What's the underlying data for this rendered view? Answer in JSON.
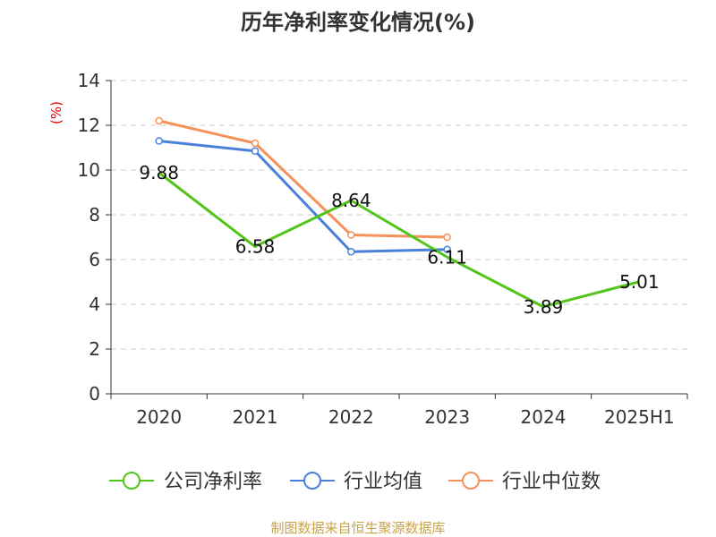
{
  "chart_data": {
    "type": "line",
    "title": "历年净利率变化情况(%)",
    "ylabel": "(%)",
    "xlabel": "",
    "categories": [
      "2020",
      "2021",
      "2022",
      "2023",
      "2024",
      "2025H1"
    ],
    "ylim": [
      0,
      14
    ],
    "yticks": [
      0,
      2,
      4,
      6,
      8,
      10,
      12,
      14
    ],
    "grid": true,
    "legend_position": "bottom",
    "series": [
      {
        "name": "公司净利率",
        "color": "#52c41a",
        "values": [
          9.88,
          6.58,
          8.64,
          6.11,
          3.89,
          5.01
        ],
        "labels": [
          "9.88",
          "6.58",
          "8.64",
          "6.11",
          "3.89",
          "5.01"
        ],
        "show_markers": false
      },
      {
        "name": "行业均值",
        "color": "#4a7fdc",
        "values": [
          11.3,
          10.85,
          6.35,
          6.45,
          null,
          null
        ],
        "show_markers": true
      },
      {
        "name": "行业中位数",
        "color": "#f5915a",
        "values": [
          12.2,
          11.2,
          7.1,
          7.0,
          null,
          null
        ],
        "show_markers": true
      }
    ]
  },
  "footer": {
    "source": "制图数据来自恒生聚源数据库"
  }
}
